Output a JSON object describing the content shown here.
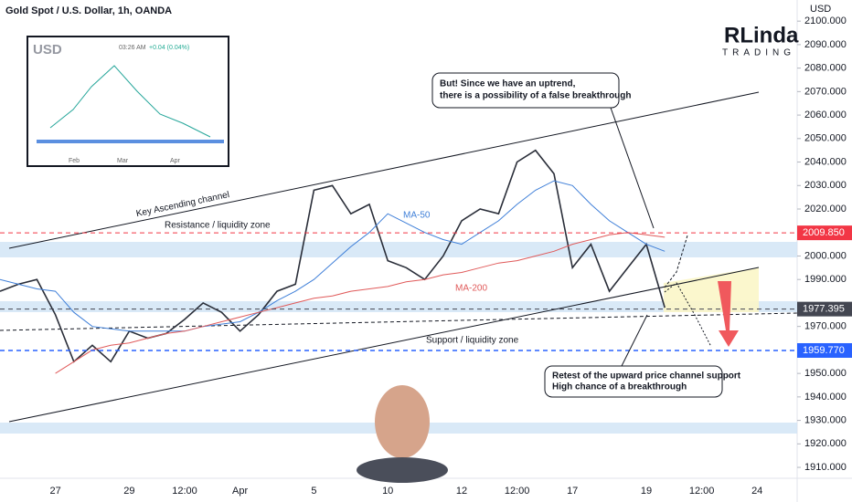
{
  "chart_data": {
    "type": "line",
    "title": "Gold Spot / U.S. Dollar, 1h, OANDA",
    "currency": "USD",
    "logo": {
      "main": "RLinda",
      "sub": "TRADING"
    },
    "categories": [
      null,
      null,
      null,
      "27",
      null,
      null,
      null,
      "29",
      null,
      null,
      "12:00",
      null,
      null,
      "Apr",
      null,
      null,
      null,
      "5",
      null,
      null,
      null,
      "10",
      null,
      null,
      null,
      "12",
      null,
      null,
      "12:00",
      null,
      null,
      "17",
      null,
      null,
      null,
      "19",
      null,
      null,
      "12:00",
      null,
      null,
      "24",
      null
    ],
    "series": [
      {
        "name": "Price",
        "color": "#2a2e39",
        "values": [
          1985,
          1988,
          1990,
          1975,
          1955,
          1962,
          1955,
          1968,
          1965,
          1967,
          1973,
          1980,
          1976,
          1968,
          1975,
          1985,
          1988,
          2028,
          2030,
          2018,
          2022,
          1998,
          1995,
          1990,
          2000,
          2015,
          2020,
          2018,
          2040,
          2045,
          2035,
          1995,
          2005,
          1985,
          1995,
          2005,
          1978,
          null,
          null,
          null,
          null,
          null,
          null
        ]
      },
      {
        "name": "MA-50",
        "color": "#3f7fd8",
        "values": [
          1990,
          1988,
          1986,
          1985,
          1976,
          1970,
          1969,
          1968,
          1968,
          1968,
          1968,
          1970,
          1971,
          1972,
          1976,
          1981,
          1985,
          1990,
          1997,
          2004,
          2010,
          2018,
          2014,
          2010,
          2007,
          2005,
          2010,
          2015,
          2022,
          2028,
          2032,
          2030,
          2022,
          2015,
          2010,
          2005,
          2002,
          null,
          null,
          null,
          null,
          null,
          null
        ]
      },
      {
        "name": "MA-200",
        "color": "#e05a5a",
        "values": [
          null,
          null,
          null,
          1950,
          1955,
          1960,
          1962,
          1963,
          1965,
          1967,
          1968,
          1970,
          1972,
          1974,
          1976,
          1978,
          1980,
          1982,
          1983,
          1985,
          1986,
          1987,
          1989,
          1990,
          1992,
          1993,
          1995,
          1997,
          1998,
          2000,
          2002,
          2005,
          2007,
          2009,
          2010,
          2009,
          2008,
          null,
          null,
          null,
          null,
          null,
          null
        ]
      }
    ],
    "ylim": [
      1900.5,
      2109
    ],
    "yticks": [
      {
        "value": 2100,
        "label": "2100.000"
      },
      {
        "value": 2090,
        "label": "2090.000"
      },
      {
        "value": 2080,
        "label": "2080.000"
      },
      {
        "value": 2070,
        "label": "2070.000"
      },
      {
        "value": 2060,
        "label": "2060.000"
      },
      {
        "value": 2050,
        "label": "2050.000"
      },
      {
        "value": 2040,
        "label": "2040.000"
      },
      {
        "value": 2030,
        "label": "2030.000"
      },
      {
        "value": 2020,
        "label": "2020.000"
      },
      {
        "value": 2000,
        "label": "2000.000"
      },
      {
        "value": 1990,
        "label": "1990.000"
      },
      {
        "value": 1970,
        "label": "1970.000"
      },
      {
        "value": 1950,
        "label": "1950.000"
      },
      {
        "value": 1940,
        "label": "1940.000"
      },
      {
        "value": 1930,
        "label": "1930.000"
      },
      {
        "value": 1920,
        "label": "1920.000"
      },
      {
        "value": 1910,
        "label": "1910.000"
      }
    ],
    "levels": [
      {
        "value": 2009.85,
        "label": "2009.850",
        "color": "#f23645"
      },
      {
        "value": 1977.395,
        "label": "1977.395",
        "color": "#434651"
      },
      {
        "value": 1959.77,
        "label": "1959.770",
        "color": "#2962ff"
      }
    ],
    "annotations": {
      "channel": "Key Ascending channel",
      "resistance": "Resistance / liquidity zone",
      "support": "Support / liquidity zone",
      "ma50": "MA-50",
      "ma200": "MA-200",
      "callout_top": [
        "But! Since we have an uptrend,",
        "there is a possibility of a false breakthrough"
      ],
      "callout_bottom": [
        "Retest of the upward price channel support",
        "High chance of a breakthrough"
      ]
    },
    "inset": {
      "title": "USD",
      "time": "03:26 AM",
      "change": "+0.04 (0.04%)",
      "months": [
        "Feb",
        "Mar",
        "Apr"
      ]
    }
  }
}
